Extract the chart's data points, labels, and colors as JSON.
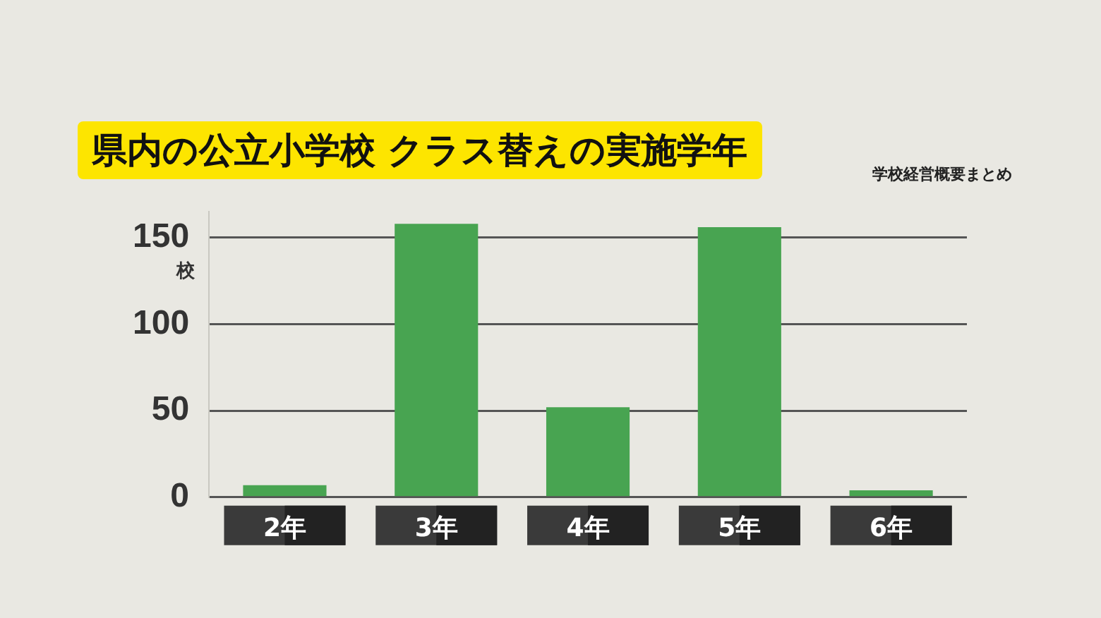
{
  "chart_data": {
    "type": "bar",
    "title": "県内の公立小学校 クラス替えの実施学年",
    "ylabel": "校",
    "annotations": [
      "学校経営概要まとめ"
    ],
    "categories": [
      "2年",
      "3年",
      "4年",
      "5年",
      "6年"
    ],
    "values": [
      7,
      158,
      52,
      156,
      4
    ],
    "color": "#48a451",
    "ylim": [
      0,
      165
    ],
    "yticks": [
      0,
      50,
      100,
      150
    ],
    "grid": "y",
    "legend": false
  }
}
